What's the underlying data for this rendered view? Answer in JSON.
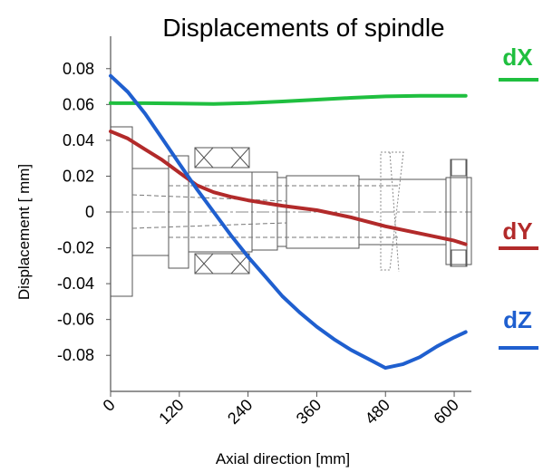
{
  "chart_data": {
    "type": "line",
    "title": "Displacements of spindle",
    "xlabel": "Axial direction [mm]",
    "ylabel": "Displacement [ mm]",
    "xlim": [
      0,
      630
    ],
    "ylim": [
      -0.09,
      0.09
    ],
    "xticks": [
      0,
      120,
      240,
      360,
      480,
      600
    ],
    "xtick_labels": [
      "0",
      "120",
      "240",
      "360",
      "480",
      "600"
    ],
    "yticks": [
      0.08,
      0.06,
      0.04,
      0.02,
      0,
      -0.02,
      -0.04,
      -0.06,
      -0.08
    ],
    "ytick_labels": [
      "0.08",
      "0.06",
      "0.04",
      "0.02",
      "0",
      "-0.02",
      "-0.04",
      "-0.06",
      "-0.08"
    ],
    "grid": false,
    "legend_position": "right",
    "series": [
      {
        "name": "dX",
        "color": "#1fbf3f",
        "x": [
          0,
          60,
          120,
          180,
          240,
          300,
          360,
          420,
          480,
          540,
          600,
          620
        ],
        "y": [
          0.0608,
          0.0607,
          0.0605,
          0.0603,
          0.0608,
          0.0617,
          0.0627,
          0.0637,
          0.0645,
          0.0648,
          0.0648,
          0.0648
        ]
      },
      {
        "name": "dY",
        "color": "#b22a2a",
        "x": [
          0,
          30,
          60,
          90,
          120,
          150,
          180,
          210,
          240,
          300,
          360,
          420,
          480,
          540,
          600,
          620
        ],
        "y": [
          0.045,
          0.041,
          0.035,
          0.029,
          0.022,
          0.015,
          0.011,
          0.0085,
          0.0065,
          0.0035,
          0.001,
          -0.003,
          -0.008,
          -0.012,
          -0.016,
          -0.018
        ]
      },
      {
        "name": "dZ",
        "color": "#1f5fcf",
        "x": [
          0,
          30,
          60,
          90,
          120,
          150,
          180,
          210,
          240,
          270,
          300,
          330,
          360,
          390,
          420,
          450,
          480,
          510,
          540,
          570,
          600,
          620
        ],
        "y": [
          0.076,
          0.067,
          0.055,
          0.041,
          0.027,
          0.013,
          0.0,
          -0.013,
          -0.025,
          -0.036,
          -0.047,
          -0.056,
          -0.064,
          -0.071,
          -0.077,
          -0.082,
          -0.087,
          -0.085,
          -0.081,
          -0.075,
          -0.07,
          -0.067
        ]
      }
    ]
  },
  "legend": {
    "dX": {
      "label": "dX",
      "color": "#1fbf3f"
    },
    "dY": {
      "label": "dY",
      "color": "#b22a2a"
    },
    "dZ": {
      "label": "dZ",
      "color": "#1f5fcf"
    }
  }
}
